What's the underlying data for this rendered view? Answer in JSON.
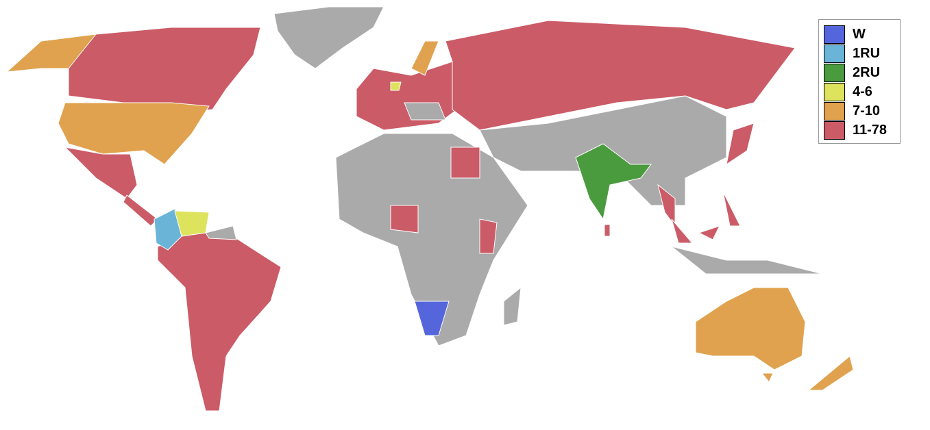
{
  "map": {
    "no_data_color": "#aaaaaa",
    "border_color": "#ffffff"
  },
  "legend": {
    "items": [
      {
        "key": "W",
        "label": "W",
        "color": "#5566dd"
      },
      {
        "key": "1RU",
        "label": "1RU",
        "color": "#6ab4d8"
      },
      {
        "key": "2RU",
        "label": "2RU",
        "color": "#4a9a3e"
      },
      {
        "key": "4-6",
        "label": "4-6",
        "color": "#dde35c"
      },
      {
        "key": "7-10",
        "label": "7-10",
        "color": "#e0a24e"
      },
      {
        "key": "11-78",
        "label": "11-78",
        "color": "#cb5b67"
      }
    ]
  }
}
